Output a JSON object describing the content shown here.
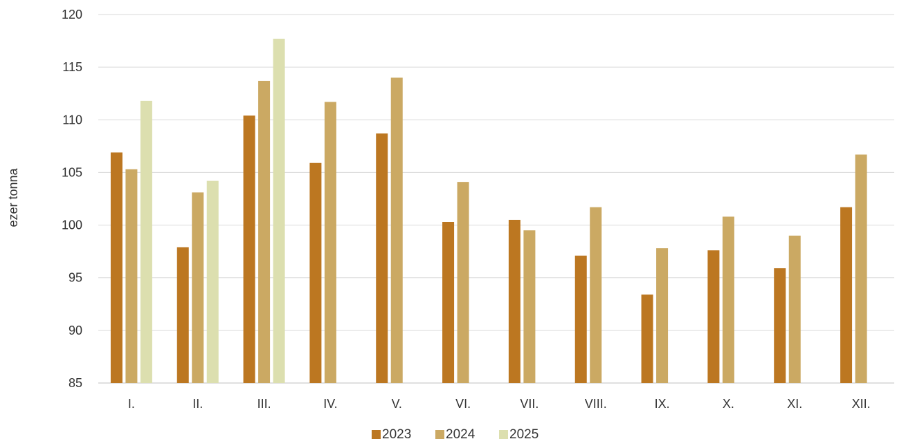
{
  "chart_data": {
    "type": "bar",
    "title": "",
    "xlabel": "",
    "ylabel": "ezer tonna",
    "ylim": [
      85,
      120
    ],
    "yticks": [
      85,
      90,
      95,
      100,
      105,
      110,
      115,
      120
    ],
    "grid": true,
    "legend_position": "bottom",
    "categories": [
      "I.",
      "II.",
      "III.",
      "IV.",
      "V.",
      "VI.",
      "VII.",
      "VIII.",
      "IX.",
      "X.",
      "XI.",
      "XII."
    ],
    "series": [
      {
        "name": "2023",
        "color": "#BC7721",
        "values": [
          106.9,
          97.9,
          110.4,
          105.9,
          108.7,
          100.3,
          100.5,
          97.1,
          93.4,
          97.6,
          95.9,
          101.7
        ]
      },
      {
        "name": "2024",
        "color": "#CBA963",
        "values": [
          105.3,
          103.1,
          113.7,
          111.7,
          114.0,
          104.1,
          99.5,
          101.7,
          97.8,
          100.8,
          99.0,
          106.7
        ]
      },
      {
        "name": "2025",
        "color": "#DCDFAF",
        "values": [
          111.8,
          104.2,
          117.7,
          null,
          null,
          null,
          null,
          null,
          null,
          null,
          null,
          null
        ]
      }
    ]
  }
}
